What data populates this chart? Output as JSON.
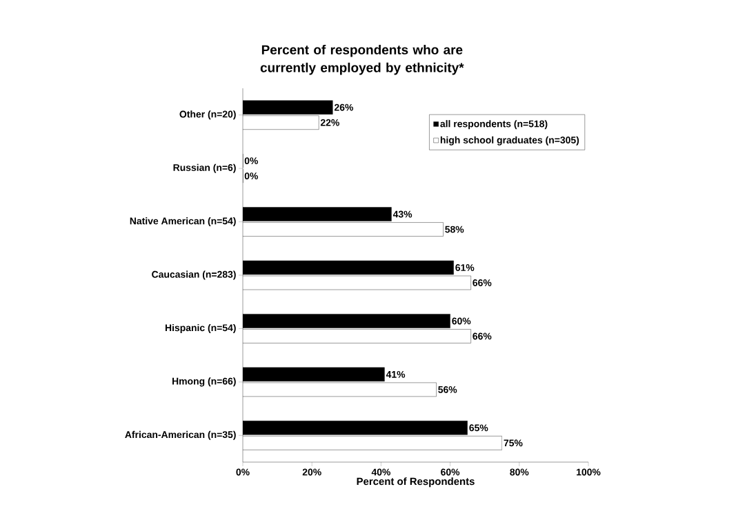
{
  "chart_data": {
    "type": "bar",
    "orientation": "horizontal",
    "title": "Percent of respondents who are currently employed by ethnicity*",
    "xlabel": "Percent of Respondents",
    "categories": [
      "Other (n=20)",
      "Russian (n=6)",
      "Native American (n=54)",
      "Caucasian (n=283)",
      "Hispanic (n=54)",
      "Hmong (n=66)",
      "African-American (n=35)"
    ],
    "series": [
      {
        "name": "all respondents (n=518)",
        "color": "#000000",
        "values": [
          26,
          0,
          43,
          61,
          60,
          41,
          65
        ],
        "value_labels": [
          "26%",
          "0%",
          "43%",
          "61%",
          "60%",
          "41%",
          "65%"
        ]
      },
      {
        "name": "high school graduates (n=305)",
        "color": "#ffffff",
        "values": [
          22,
          0,
          58,
          66,
          66,
          56,
          75
        ],
        "value_labels": [
          "22%",
          "0%",
          "58%",
          "66%",
          "66%",
          "56%",
          "75%"
        ]
      }
    ],
    "xlim": [
      0,
      100
    ],
    "xticks": [
      {
        "value": 0,
        "label": "0%"
      },
      {
        "value": 20,
        "label": "20%"
      },
      {
        "value": 40,
        "label": "40%"
      },
      {
        "value": 60,
        "label": "60%"
      },
      {
        "value": 80,
        "label": "80%"
      },
      {
        "value": 100,
        "label": "100%"
      }
    ],
    "legend": "top right",
    "grid": false
  }
}
